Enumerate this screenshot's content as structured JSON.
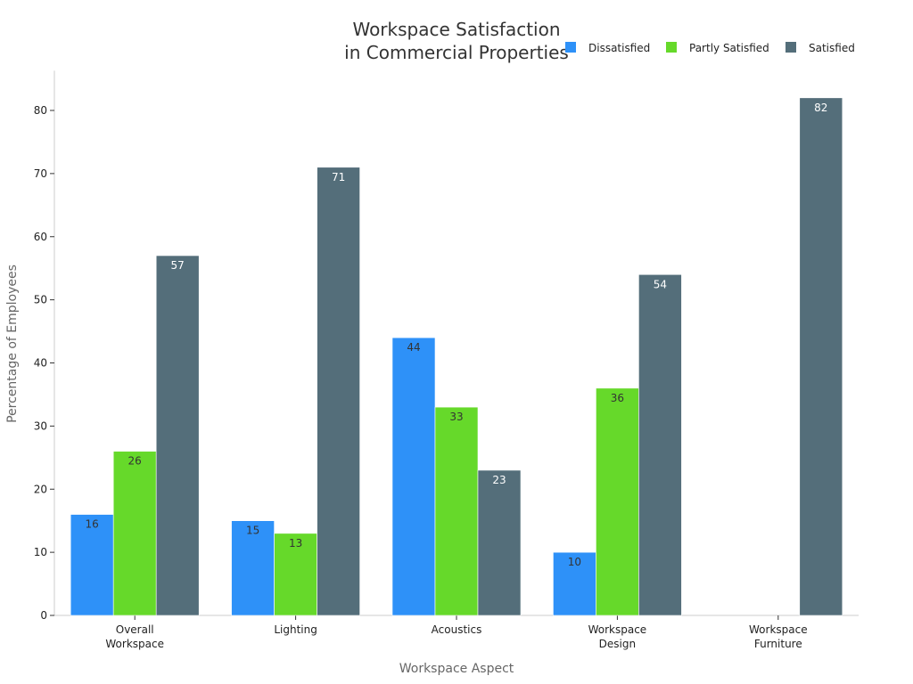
{
  "chart_data": {
    "type": "bar",
    "title": [
      "Workspace Satisfaction",
      "in Commercial Properties"
    ],
    "xlabel": "Workspace Aspect",
    "ylabel": "Percentage of Employees",
    "categories": [
      [
        "Overall",
        "Workspace"
      ],
      [
        "Lighting"
      ],
      [
        "Acoustics"
      ],
      [
        "Workspace",
        "Design"
      ],
      [
        "Workspace",
        "Furniture"
      ]
    ],
    "series": [
      {
        "name": "Dissatisfied",
        "color": "#2e91f8",
        "label_color": "#333333",
        "values": [
          16,
          15,
          44,
          10,
          null
        ]
      },
      {
        "name": "Partly Satisfied",
        "color": "#66d92a",
        "label_color": "#333333",
        "values": [
          26,
          13,
          33,
          36,
          null
        ]
      },
      {
        "name": "Satisfied",
        "color": "#546e7a",
        "label_color": "#ffffff",
        "values": [
          57,
          71,
          23,
          54,
          82
        ]
      }
    ],
    "ylim": [
      0,
      86.3
    ],
    "yticks": [
      0,
      10,
      20,
      30,
      40,
      50,
      60,
      70,
      80
    ],
    "grid": false,
    "legend_position": "top-right"
  }
}
